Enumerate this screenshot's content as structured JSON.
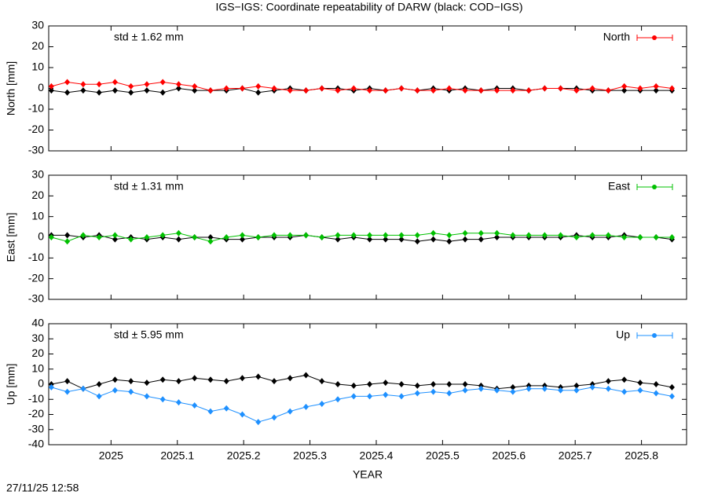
{
  "title": "IGS−IGS: Coordinate repeatability of DARW (black: COD−IGS)",
  "footer": "27/11/25 12:58",
  "chart_data": [
    {
      "type": "line",
      "ylabel": "North [mm]",
      "annotation": "std ± 1.62 mm",
      "xlim": [
        2024.906,
        2025.868
      ],
      "ylim": [
        -30,
        30
      ],
      "yticks": [
        -30,
        -20,
        -10,
        0,
        10,
        20,
        30
      ],
      "x": [
        2024.91,
        2024.934,
        2024.958,
        2024.982,
        2025.006,
        2025.03,
        2025.054,
        2025.078,
        2025.102,
        2025.126,
        2025.15,
        2025.174,
        2025.198,
        2025.222,
        2025.246,
        2025.27,
        2025.294,
        2025.318,
        2025.342,
        2025.366,
        2025.39,
        2025.414,
        2025.438,
        2025.462,
        2025.486,
        2025.51,
        2025.534,
        2025.558,
        2025.582,
        2025.606,
        2025.63,
        2025.654,
        2025.678,
        2025.702,
        2025.726,
        2025.75,
        2025.774,
        2025.798,
        2025.822,
        2025.846
      ],
      "series": [
        {
          "name": "North",
          "color": "#ff0000",
          "values": [
            1,
            3,
            2,
            2,
            3,
            1,
            2,
            3,
            2,
            1,
            -1,
            0,
            0,
            1,
            0,
            -1,
            -1,
            0,
            -1,
            0,
            -1,
            -1,
            0,
            -1,
            -1,
            0,
            -1,
            -1,
            -1,
            -1,
            -1,
            0,
            0,
            -1,
            0,
            -1,
            1,
            0,
            1,
            0
          ]
        },
        {
          "color": "#000000",
          "values": [
            -1,
            -2,
            -1,
            -2,
            -1,
            -2,
            -1,
            -2,
            0,
            -1,
            -1,
            -1,
            0,
            -2,
            -1,
            0,
            -1,
            0,
            0,
            -1,
            0,
            -1,
            0,
            -1,
            0,
            -1,
            0,
            -1,
            0,
            0,
            -1,
            0,
            0,
            0,
            -1,
            -1,
            -1,
            -1,
            -1,
            -1
          ]
        }
      ]
    },
    {
      "type": "line",
      "ylabel": "East [mm]",
      "annotation": "std ± 1.31 mm",
      "xlim": [
        2024.906,
        2025.868
      ],
      "ylim": [
        -30,
        30
      ],
      "yticks": [
        -30,
        -20,
        -10,
        0,
        10,
        20,
        30
      ],
      "x": [
        2024.91,
        2024.934,
        2024.958,
        2024.982,
        2025.006,
        2025.03,
        2025.054,
        2025.078,
        2025.102,
        2025.126,
        2025.15,
        2025.174,
        2025.198,
        2025.222,
        2025.246,
        2025.27,
        2025.294,
        2025.318,
        2025.342,
        2025.366,
        2025.39,
        2025.414,
        2025.438,
        2025.462,
        2025.486,
        2025.51,
        2025.534,
        2025.558,
        2025.582,
        2025.606,
        2025.63,
        2025.654,
        2025.678,
        2025.702,
        2025.726,
        2025.75,
        2025.774,
        2025.798,
        2025.822,
        2025.846
      ],
      "series": [
        {
          "name": "East",
          "color": "#00c000",
          "values": [
            0,
            -2,
            1,
            0,
            1,
            -1,
            0,
            1,
            2,
            0,
            -2,
            0,
            1,
            0,
            1,
            1,
            1,
            0,
            1,
            1,
            1,
            1,
            1,
            1,
            2,
            1,
            2,
            2,
            2,
            1,
            1,
            1,
            1,
            0,
            1,
            1,
            0,
            0,
            0,
            0
          ]
        },
        {
          "color": "#000000",
          "values": [
            1,
            1,
            0,
            1,
            -1,
            0,
            -1,
            0,
            -1,
            0,
            0,
            -1,
            -1,
            0,
            0,
            0,
            1,
            0,
            -1,
            0,
            -1,
            -1,
            -1,
            -2,
            -1,
            -2,
            -1,
            -1,
            0,
            0,
            0,
            0,
            0,
            1,
            0,
            0,
            1,
            0,
            0,
            -1
          ]
        }
      ]
    },
    {
      "type": "line",
      "ylabel": "Up [mm]",
      "annotation": "std ± 5.95 mm",
      "xlabel": "YEAR",
      "xlim": [
        2024.906,
        2025.868
      ],
      "ylim": [
        -40,
        40
      ],
      "yticks": [
        -40,
        -30,
        -20,
        -10,
        0,
        10,
        20,
        30,
        40
      ],
      "xticks": [
        2025,
        2025.1,
        2025.2,
        2025.3,
        2025.4,
        2025.5,
        2025.6,
        2025.7,
        2025.8
      ],
      "x": [
        2024.91,
        2024.934,
        2024.958,
        2024.982,
        2025.006,
        2025.03,
        2025.054,
        2025.078,
        2025.102,
        2025.126,
        2025.15,
        2025.174,
        2025.198,
        2025.222,
        2025.246,
        2025.27,
        2025.294,
        2025.318,
        2025.342,
        2025.366,
        2025.39,
        2025.414,
        2025.438,
        2025.462,
        2025.486,
        2025.51,
        2025.534,
        2025.558,
        2025.582,
        2025.606,
        2025.63,
        2025.654,
        2025.678,
        2025.702,
        2025.726,
        2025.75,
        2025.774,
        2025.798,
        2025.822,
        2025.846
      ],
      "series": [
        {
          "name": "Up",
          "color": "#1e90ff",
          "values": [
            -2,
            -5,
            -3,
            -8,
            -4,
            -5,
            -8,
            -10,
            -12,
            -14,
            -18,
            -16,
            -20,
            -25,
            -22,
            -18,
            -15,
            -13,
            -10,
            -8,
            -8,
            -7,
            -8,
            -6,
            -5,
            -6,
            -4,
            -3,
            -4,
            -5,
            -3,
            -3,
            -4,
            -4,
            -2,
            -3,
            -5,
            -4,
            -6,
            -8
          ]
        },
        {
          "color": "#000000",
          "values": [
            0,
            2,
            -3,
            0,
            3,
            2,
            1,
            3,
            2,
            4,
            3,
            2,
            4,
            5,
            2,
            4,
            6,
            2,
            0,
            -1,
            0,
            1,
            0,
            -1,
            0,
            0,
            0,
            -1,
            -3,
            -2,
            -1,
            -1,
            -2,
            -1,
            0,
            2,
            3,
            1,
            0,
            -2
          ]
        }
      ]
    }
  ]
}
